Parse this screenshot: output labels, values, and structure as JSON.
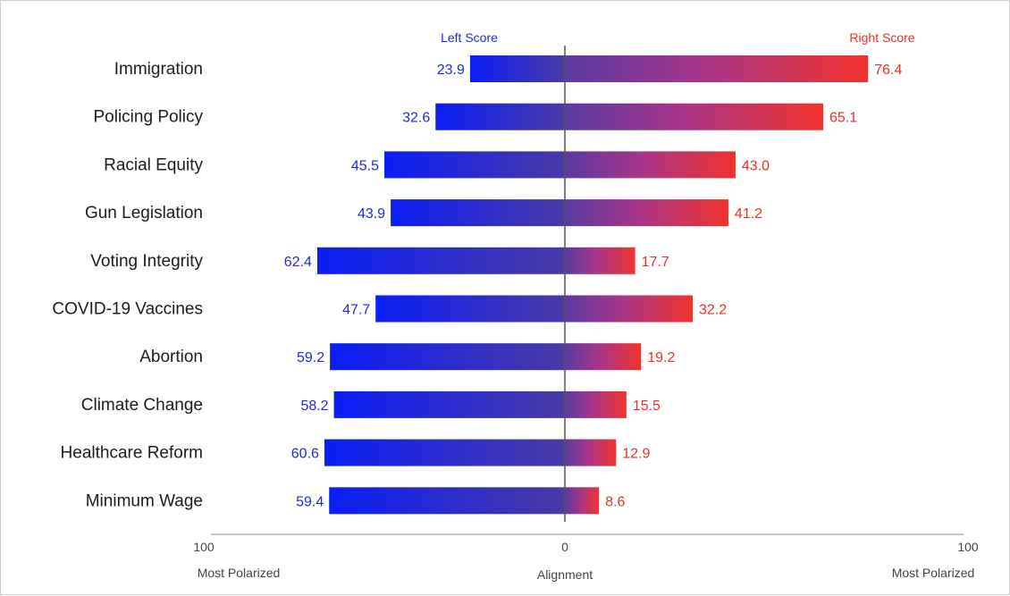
{
  "chart_data": {
    "type": "bar",
    "categories": [
      "Immigration",
      "Policing Policy",
      "Racial Equity",
      "Gun Legislation",
      "Voting Integrity",
      "COVID-19 Vaccines",
      "Abortion",
      "Climate Change",
      "Healthcare Reform",
      "Minimum Wage"
    ],
    "series": [
      {
        "name": "Left Score",
        "values": [
          23.9,
          32.6,
          45.5,
          43.9,
          62.4,
          47.7,
          59.2,
          58.2,
          60.6,
          59.4
        ]
      },
      {
        "name": "Right Score",
        "values": [
          76.4,
          65.1,
          43.0,
          41.2,
          17.7,
          32.2,
          19.2,
          15.5,
          12.9,
          8.6
        ]
      }
    ],
    "left_header": "Left Score",
    "right_header": "Right Score",
    "xlim": [
      -100,
      100
    ],
    "ticks": {
      "left": "100",
      "center": "0",
      "right": "100"
    },
    "axis_labels": {
      "left": "Most Polarized",
      "center": "Alignment",
      "right": "Most Polarized"
    },
    "colors": {
      "left": "#0a1ef5",
      "mid": "#7b3aa6",
      "right": "#f0332b",
      "left_text": "#1f2bdc",
      "right_text": "#e8302d"
    },
    "value_format": "one-decimal"
  }
}
